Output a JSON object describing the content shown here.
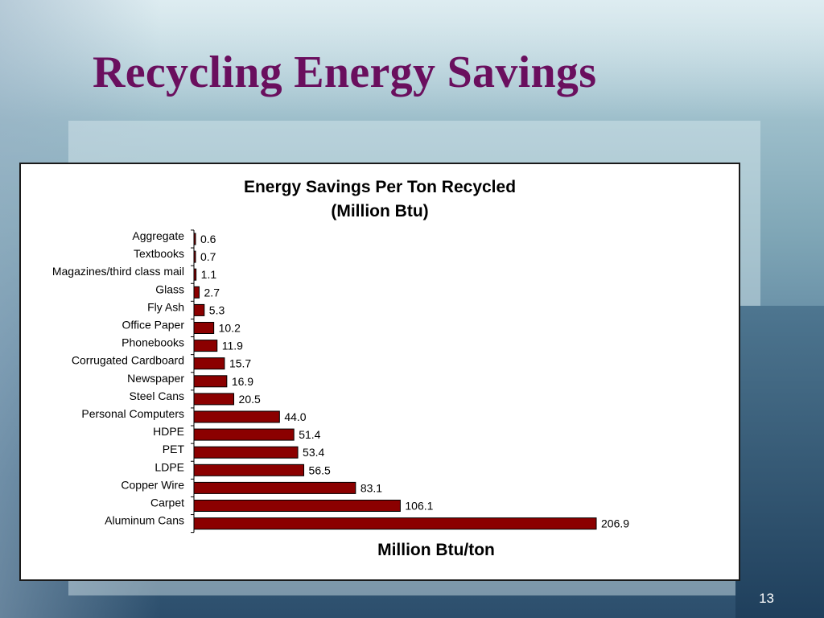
{
  "slide": {
    "title": "Recycling Energy Savings",
    "page_number": "13"
  },
  "colors": {
    "title": "#6a0f5e",
    "bar_fill": "#8b0000",
    "bar_stroke": "#000000"
  },
  "chart_data": {
    "type": "bar",
    "orientation": "horizontal",
    "title_line1": "Energy Savings Per Ton Recycled",
    "title_line2": "(Million Btu)",
    "xlabel": "Million Btu/ton",
    "ylabel": "",
    "xlim": [
      0,
      206.9
    ],
    "grid": false,
    "legend": "none",
    "categories": [
      "Aggregate",
      "Textbooks",
      "Magazines/third class mail",
      "Glass",
      "Fly Ash",
      "Office Paper",
      "Phonebooks",
      "Corrugated Cardboard",
      "Newspaper",
      "Steel Cans",
      "Personal Computers",
      "HDPE",
      "PET",
      "LDPE",
      "Copper Wire",
      "Carpet",
      "Aluminum Cans"
    ],
    "values": [
      0.6,
      0.7,
      1.1,
      2.7,
      5.3,
      10.2,
      11.9,
      15.7,
      16.9,
      20.5,
      44.0,
      51.4,
      53.4,
      56.5,
      83.1,
      106.1,
      206.9
    ],
    "value_labels": [
      "0.6",
      "0.7",
      "1.1",
      "2.7",
      "5.3",
      "10.2",
      "11.9",
      "15.7",
      "16.9",
      "20.5",
      "44.0",
      "51.4",
      "53.4",
      "56.5",
      "83.1",
      "106.1",
      "206.9"
    ]
  }
}
